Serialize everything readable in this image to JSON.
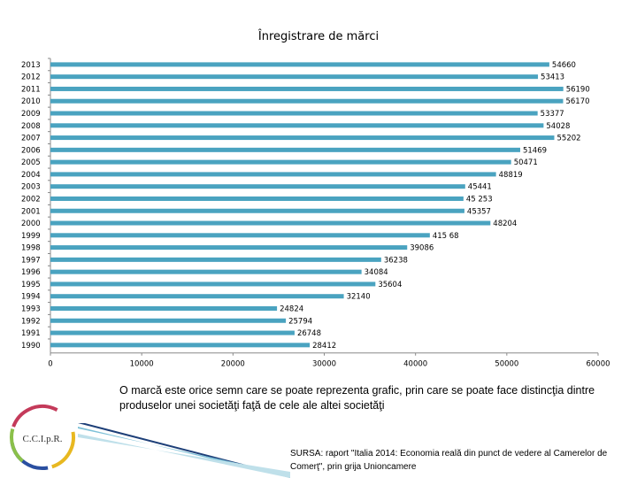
{
  "chart_data": {
    "type": "bar",
    "orientation": "horizontal",
    "title": "Înregistrare de mărci",
    "categories": [
      "2013",
      "2012",
      "2011",
      "2010",
      "2009",
      "2008",
      "2007",
      "2006",
      "2005",
      "2004",
      "2003",
      "2002",
      "2001",
      "2000",
      "1999",
      "1998",
      "1997",
      "1996",
      "1995",
      "1994",
      "1993",
      "1992",
      "1991",
      "1990"
    ],
    "values": [
      54660,
      53413,
      56190,
      56170,
      53377,
      54028,
      55202,
      51469,
      50471,
      48819,
      45441,
      45253,
      45357,
      48204,
      41568,
      39086,
      36238,
      34084,
      35604,
      32140,
      24824,
      25794,
      26748,
      28412
    ],
    "value_labels": [
      "54660",
      "53413",
      "56190",
      "56170",
      "53377",
      "54028",
      "55202",
      "51469",
      "50471",
      "48819",
      "45441",
      "45 253",
      "45357",
      "48204",
      "415 68",
      "39086",
      "36238",
      "34084",
      "35604",
      "32140",
      "24824",
      "25794",
      "26748",
      "28412"
    ],
    "xlim": [
      0,
      60000
    ],
    "xticks": [
      0,
      10000,
      20000,
      30000,
      40000,
      50000,
      60000
    ],
    "xtick_labels": [
      "0",
      "10000",
      "20000",
      "30000",
      "40000",
      "50000",
      "60000"
    ],
    "bar_color": "#4aa3c0",
    "grid": false
  },
  "caption": "O marcă este orice semn care se poate reprezenta grafic, prin care se poate  face distincţia dintre produselor unei societăţi  faţă de cele ale altei societăţi",
  "source": "SURSA: raport \"Italia 2014: Economia reală din punct de vedere al Camerelor de Comerţ\", prin grija Unioncamere",
  "logo": {
    "text": "C.C.I.p.R.",
    "icon": "cci-logo-icon"
  }
}
